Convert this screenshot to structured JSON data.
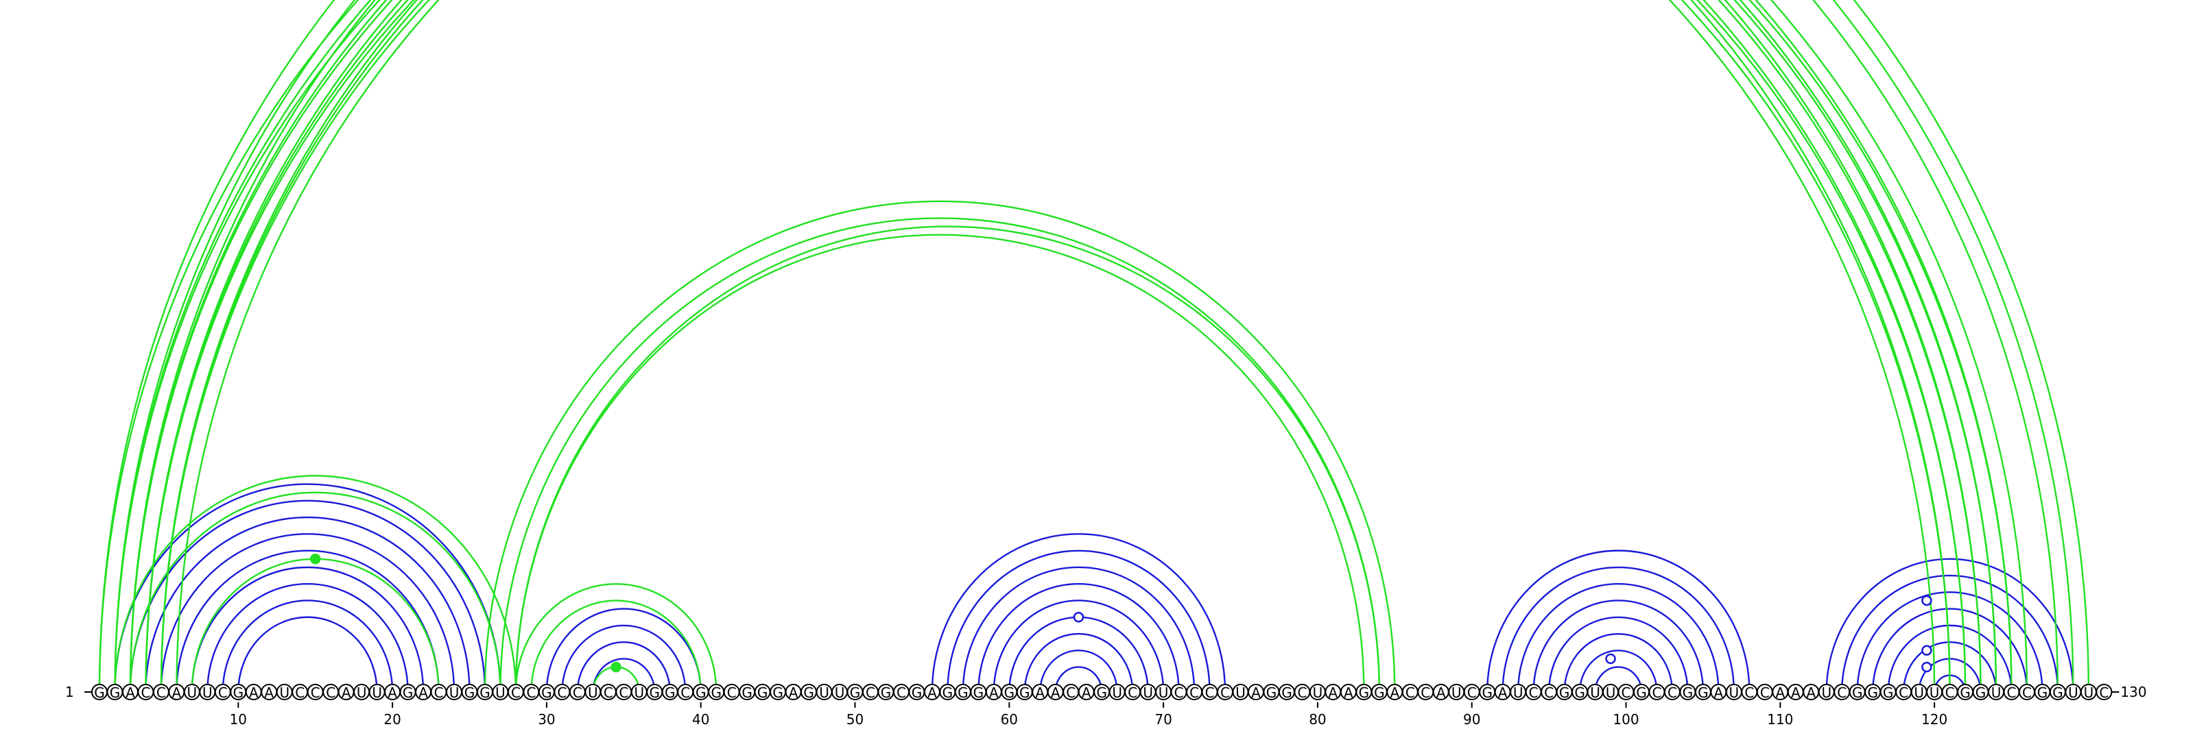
{
  "sequence": "GGACCAUUCGAAUCCCAUUAGACUGGUCCGCCUCCUGGCGGCGGGAGUUGCGCGAGGGAGGAACAGUCUUCCCCUAGGCUAAGGACCAUCGAUCCGGUUCGCCGGAUCCAAAUCGGGCUUCGGUCCGGUUC",
  "start_label": "1",
  "end_label": "130",
  "tick_positions": [
    10,
    20,
    30,
    40,
    50,
    60,
    70,
    80,
    90,
    100,
    110,
    120
  ],
  "colors": {
    "blue": "#1a1ad8",
    "green": "#22e022",
    "backbone": "#000000"
  },
  "helices_blue": [
    {
      "i": 2,
      "j": 27,
      "count": 9
    },
    {
      "i": 30,
      "j": 40,
      "count": 4
    },
    {
      "i": 55,
      "j": 74,
      "count": 9
    },
    {
      "i": 91,
      "j": 108,
      "count": 9
    },
    {
      "i": 113,
      "j": 129,
      "count": 9
    }
  ],
  "helices_green": [
    {
      "i": 1,
      "j": 121,
      "count": 2
    },
    {
      "i": 2,
      "j": 123,
      "count": 3
    },
    {
      "i": 3,
      "j": 124,
      "count": 3
    },
    {
      "i": 4,
      "j": 125,
      "count": 2
    },
    {
      "i": 5,
      "j": 126,
      "count": 2
    },
    {
      "i": 1,
      "j": 130,
      "count": 3
    },
    {
      "i": 2,
      "j": 28,
      "count": 2
    },
    {
      "i": 7,
      "j": 23,
      "count": 1
    },
    {
      "i": 26,
      "j": 85,
      "count": 3
    },
    {
      "i": 28,
      "j": 84,
      "count": 1
    },
    {
      "i": 28,
      "j": 41,
      "count": 2
    },
    {
      "i": 33,
      "j": 36,
      "count": 1
    }
  ],
  "markers": [
    {
      "i": 1,
      "j": 130,
      "color": "green",
      "filled": false
    },
    {
      "i": 7,
      "j": 23,
      "color": "green",
      "filled": true
    },
    {
      "i": 33,
      "j": 36,
      "color": "green",
      "filled": true
    },
    {
      "i": 60,
      "j": 69,
      "color": "blue",
      "filled": false
    },
    {
      "i": 97,
      "j": 101,
      "color": "blue",
      "filled": false
    },
    {
      "i": 114,
      "j": 125,
      "color": "blue",
      "filled": false
    },
    {
      "i": 117,
      "j": 122,
      "color": "blue",
      "filled": false
    },
    {
      "i": 118,
      "j": 121,
      "color": "blue",
      "filled": false
    }
  ]
}
